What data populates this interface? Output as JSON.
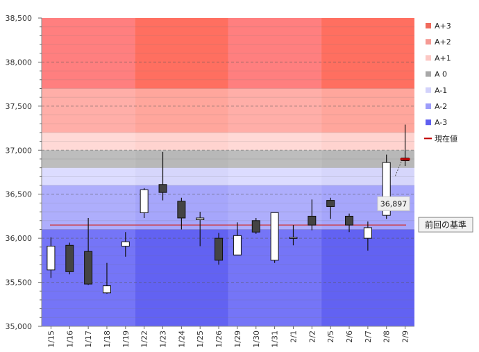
{
  "chart_data": {
    "type": "candlestick",
    "categories": [
      "1/15",
      "1/16",
      "1/17",
      "1/18",
      "1/19",
      "1/22",
      "1/23",
      "1/24",
      "1/25",
      "1/26",
      "1/29",
      "1/30",
      "1/31",
      "2/1",
      "2/2",
      "2/5",
      "2/6",
      "2/7",
      "2/8",
      "2/9"
    ],
    "ohlc": [
      {
        "open": 35640,
        "high": 36010,
        "low": 35550,
        "close": 35910
      },
      {
        "open": 35920,
        "high": 35950,
        "low": 35590,
        "close": 35620
      },
      {
        "open": 35850,
        "high": 36230,
        "low": 35470,
        "close": 35480
      },
      {
        "open": 35380,
        "high": 35720,
        "low": 35370,
        "close": 35460
      },
      {
        "open": 35910,
        "high": 36070,
        "low": 35790,
        "close": 35960
      },
      {
        "open": 36290,
        "high": 36570,
        "low": 36230,
        "close": 36550
      },
      {
        "open": 36610,
        "high": 36980,
        "low": 36430,
        "close": 36520
      },
      {
        "open": 36420,
        "high": 36460,
        "low": 36100,
        "close": 36230
      },
      {
        "open": 36210,
        "high": 36300,
        "low": 35910,
        "close": 36230
      },
      {
        "open": 36000,
        "high": 36060,
        "low": 35700,
        "close": 35750
      },
      {
        "open": 35810,
        "high": 36180,
        "low": 35810,
        "close": 36030
      },
      {
        "open": 36200,
        "high": 36230,
        "low": 36050,
        "close": 36070
      },
      {
        "open": 35750,
        "high": 36290,
        "low": 35720,
        "close": 36290
      },
      {
        "open": 36010,
        "high": 36150,
        "low": 35920,
        "close": 36010
      },
      {
        "open": 36250,
        "high": 36440,
        "low": 36090,
        "close": 36150
      },
      {
        "open": 36430,
        "high": 36460,
        "low": 36220,
        "close": 36360
      },
      {
        "open": 36250,
        "high": 36280,
        "low": 36070,
        "close": 36150
      },
      {
        "open": 36000,
        "high": 36190,
        "low": 35860,
        "close": 36120
      },
      {
        "open": 36260,
        "high": 36950,
        "low": 36220,
        "close": 36860
      },
      {
        "open": 36910,
        "high": 37290,
        "low": 36820,
        "close": 36880
      }
    ],
    "ylim": [
      35000,
      38500
    ],
    "yticks": [
      35000,
      35500,
      36000,
      36500,
      37000,
      37500,
      38000,
      38500
    ],
    "ytick_labels": [
      "35,000",
      "35,500",
      "36,000",
      "36,500",
      "37,000",
      "37,500",
      "38,000",
      "38,500"
    ],
    "bands": [
      {
        "name": "A+3",
        "from": 37700,
        "to": 38500,
        "color": "#ff7f7f",
        "alt_color": "#ff6f60"
      },
      {
        "name": "A+2",
        "from": 37200,
        "to": 37700,
        "color": "#ffaea8",
        "alt_color": "#ffa69c"
      },
      {
        "name": "A+1",
        "from": 37000,
        "to": 37200,
        "color": "#ffd9d6",
        "alt_color": "#ffd3cf"
      },
      {
        "name": "A 0",
        "from": 36800,
        "to": 37000,
        "color": "#bdbdbd",
        "alt_color": "#b8b8b8"
      },
      {
        "name": "A-1",
        "from": 36600,
        "to": 36800,
        "color": "#dcdcff",
        "alt_color": "#d6d6fb"
      },
      {
        "name": "A-2",
        "from": 36100,
        "to": 36600,
        "color": "#aeaefc",
        "alt_color": "#a6a6fb"
      },
      {
        "name": "A-3",
        "from": 35000,
        "to": 36100,
        "color": "#7575f7",
        "alt_color": "#6262f2"
      }
    ],
    "legend": [
      {
        "label": "A+3",
        "color": "#f06a5c",
        "kind": "box"
      },
      {
        "label": "A+2",
        "color": "#f59a94",
        "kind": "box"
      },
      {
        "label": "A+1",
        "color": "#fcc8c4",
        "kind": "box"
      },
      {
        "label": "A 0",
        "color": "#a8a8a8",
        "kind": "box"
      },
      {
        "label": "A-1",
        "color": "#d2d2fb",
        "kind": "box"
      },
      {
        "label": "A-2",
        "color": "#9d9dfa",
        "kind": "box"
      },
      {
        "label": "A-3",
        "color": "#5f5ff0",
        "kind": "box"
      },
      {
        "label": "現在値",
        "color": "#c00000",
        "kind": "line"
      }
    ],
    "reference_line": {
      "label": "前回の基準",
      "value": 36150,
      "color": "#d03030"
    },
    "current_price": {
      "label": "36,897",
      "value": 36897,
      "color": "#c00000"
    },
    "legend_position": "right",
    "grid": true
  }
}
